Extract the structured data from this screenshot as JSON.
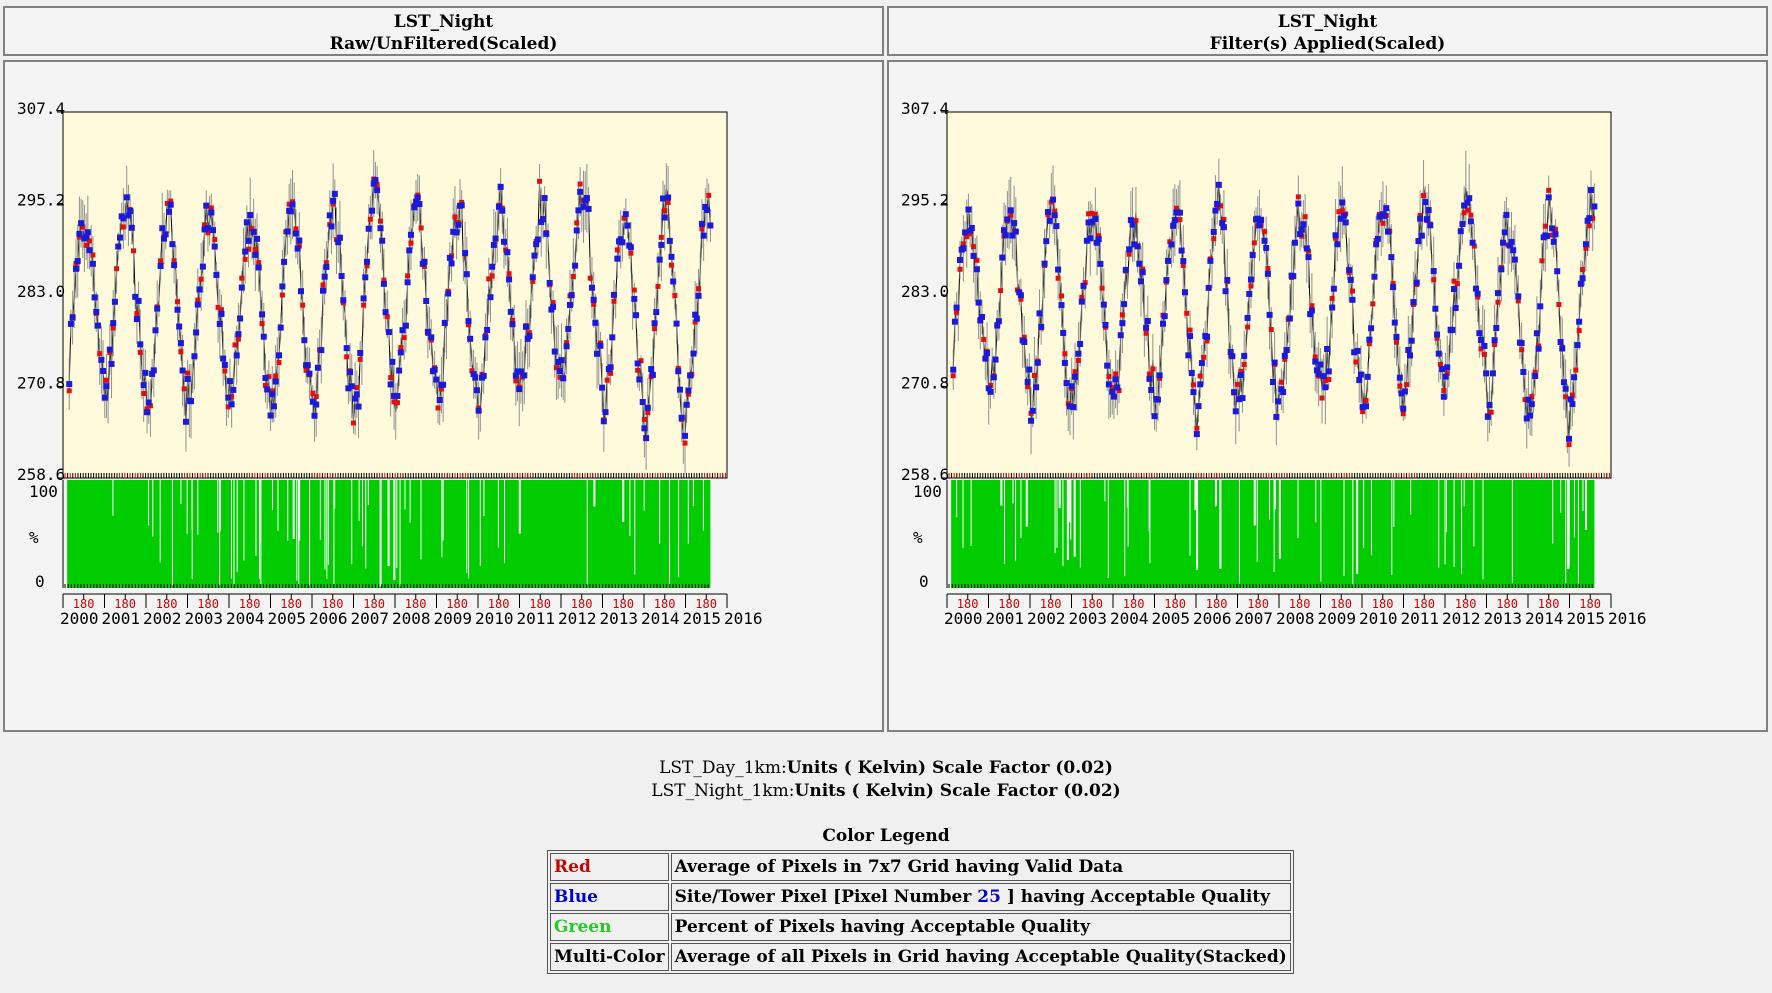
{
  "panels": [
    {
      "title": "LST_Night",
      "subtitle": "Raw/UnFiltered(Scaled)"
    },
    {
      "title": "LST_Night",
      "subtitle": "Filter(s) Applied(Scaled)"
    }
  ],
  "notes": {
    "day_prefix": "LST_Day_1km:",
    "day_units": "Units ( Kelvin) Scale Factor (0.02)",
    "night_prefix": "LST_Night_1km:",
    "night_units": "Units ( Kelvin) Scale Factor (0.02)"
  },
  "legend": {
    "title": "Color Legend",
    "rows": [
      {
        "key": "Red",
        "key_color": "#cc0000",
        "desc": "Average of Pixels in 7x7 Grid having Valid Data"
      },
      {
        "key": "Blue",
        "key_color": "#0000cc",
        "desc_before": "Site/Tower Pixel [Pixel Number ",
        "desc_num": "25",
        "desc_after": " ] having Acceptable Quality"
      },
      {
        "key": "Green",
        "key_color": "#22cc22",
        "desc": "Percent of Pixels having Acceptable Quality"
      },
      {
        "key": "Multi-Color",
        "key_color": "#000000",
        "desc": "Average of all Pixels in Grid having Acceptable Quality(Stacked)"
      }
    ]
  },
  "colors": {
    "plot_bg": "#fffadc",
    "red": "#e01010",
    "blue": "#1a1ad8",
    "green": "#00cc00",
    "err": "#909090"
  },
  "chart_data": [
    {
      "type": "scatter",
      "title": "LST_Night",
      "subtitle": "Raw/UnFiltered(Scaled)",
      "ylim": [
        258.6,
        307.4
      ],
      "y_ticks": [
        "307.4",
        "295.2",
        "283.0",
        "270.8",
        "258.6"
      ],
      "pct_ticks": [
        "100",
        "%",
        "0"
      ],
      "x_ticks": [
        "2000",
        "2001",
        "2002",
        "2003",
        "2004",
        "2005",
        "2006",
        "2007",
        "2008",
        "2009",
        "2010",
        "2011",
        "2012",
        "2013",
        "2014",
        "2015",
        "2016"
      ],
      "doy_label": "180",
      "xlim": [
        2000.0,
        2016.0
      ],
      "data_range": [
        2000.15,
        2015.6
      ],
      "seasonal_peak_K": [
        293.5,
        294.5,
        295.0,
        293.5,
        292.5,
        295.0,
        294.5,
        295.5,
        294.0,
        293.5,
        295.0,
        295.0,
        296.0,
        293.0,
        295.0,
        294.0
      ],
      "seasonal_trough_K": [
        271.5,
        270.5,
        267.5,
        269.5,
        270.0,
        268.5,
        268.0,
        268.5,
        270.0,
        269.5,
        269.5,
        271.0,
        272.5,
        269.0,
        266.0,
        269.5
      ]
    },
    {
      "type": "scatter",
      "title": "LST_Night",
      "subtitle": "Filter(s) Applied(Scaled)",
      "ylim": [
        258.6,
        307.4
      ],
      "y_ticks": [
        "307.4",
        "295.2",
        "283.0",
        "270.8",
        "258.6"
      ],
      "pct_ticks": [
        "100",
        "%",
        "0"
      ],
      "x_ticks": [
        "2000",
        "2001",
        "2002",
        "2003",
        "2004",
        "2005",
        "2006",
        "2007",
        "2008",
        "2009",
        "2010",
        "2011",
        "2012",
        "2013",
        "2014",
        "2015",
        "2016"
      ],
      "doy_label": "180",
      "xlim": [
        2000.0,
        2016.0
      ],
      "data_range": [
        2000.15,
        2015.6
      ],
      "seasonal_peak_K": [
        293.5,
        294.5,
        295.0,
        293.5,
        292.5,
        295.0,
        294.5,
        295.5,
        294.0,
        293.5,
        295.0,
        295.0,
        296.0,
        293.0,
        295.0,
        294.0
      ],
      "seasonal_trough_K": [
        271.5,
        270.5,
        267.5,
        269.5,
        270.0,
        268.5,
        268.0,
        268.5,
        270.0,
        269.5,
        269.5,
        271.0,
        272.5,
        269.0,
        266.0,
        269.5
      ]
    }
  ]
}
